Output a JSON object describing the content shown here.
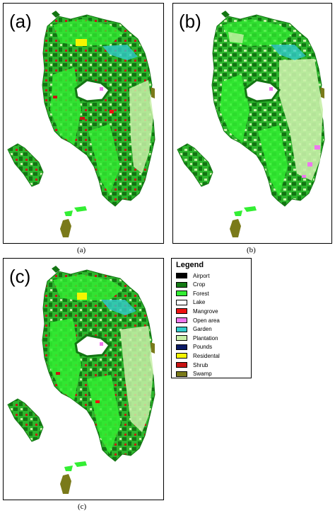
{
  "panels": [
    {
      "label": "(a)",
      "caption": "(a)"
    },
    {
      "label": "(b)",
      "caption": "(b)"
    },
    {
      "label": "(c)",
      "caption": "(c)"
    }
  ],
  "legend": {
    "title": "Legend",
    "items": [
      {
        "label": "Airport",
        "color": "#000000"
      },
      {
        "label": "Crop",
        "color": "#157a15"
      },
      {
        "label": "Forest",
        "color": "#33ee33"
      },
      {
        "label": "Lake",
        "color": "#ffffff"
      },
      {
        "label": "Mangrove",
        "color": "#ee1111"
      },
      {
        "label": "Open area",
        "color": "#ee77ee"
      },
      {
        "label": "Garden",
        "color": "#33cccc"
      },
      {
        "label": "Plantation",
        "color": "#c8f0a8"
      },
      {
        "label": "Pounds",
        "color": "#0a1a66"
      },
      {
        "label": "Residental",
        "color": "#f5f500"
      },
      {
        "label": "Shrub",
        "color": "#c81414"
      },
      {
        "label": "Swamp",
        "color": "#7a7a1a"
      }
    ]
  }
}
